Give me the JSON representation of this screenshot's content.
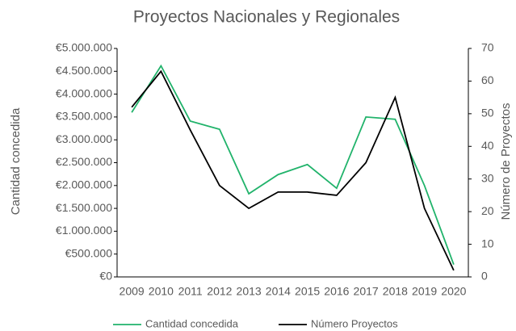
{
  "chart_data": {
    "type": "line",
    "title": "Proyectos Nacionales y Regionales",
    "y_label": "Cantidad concedida",
    "y2_label": "Número de Proyectos",
    "categories": [
      "2009",
      "2010",
      "2011",
      "2012",
      "2013",
      "2014",
      "2015",
      "2016",
      "2017",
      "2018",
      "2019",
      "2020"
    ],
    "series": [
      {
        "name": "Cantidad concedida",
        "color": "#21b36b",
        "axis": "y",
        "values": [
          3600000,
          4620000,
          3410000,
          3230000,
          1820000,
          2240000,
          2460000,
          1940000,
          3500000,
          3450000,
          2000000,
          270000
        ]
      },
      {
        "name": "Número Proyectos",
        "color": "#000000",
        "axis": "y2",
        "values": [
          52,
          63,
          45,
          28,
          21,
          26,
          26,
          25,
          35,
          55,
          21,
          2
        ]
      }
    ],
    "ylim": [
      0,
      5000000
    ],
    "yticks": [
      {
        "value": 0,
        "label": "€0"
      },
      {
        "value": 500000,
        "label": "€500.000"
      },
      {
        "value": 1000000,
        "label": "€1.000.000"
      },
      {
        "value": 1500000,
        "label": "€1.500.000"
      },
      {
        "value": 2000000,
        "label": "€2.000.000"
      },
      {
        "value": 2500000,
        "label": "€2.500.000"
      },
      {
        "value": 3000000,
        "label": "€3.000.000"
      },
      {
        "value": 3500000,
        "label": "€3.500.000"
      },
      {
        "value": 4000000,
        "label": "€4.000.000"
      },
      {
        "value": 4500000,
        "label": "€4.500.000"
      },
      {
        "value": 5000000,
        "label": "€5.000.000"
      }
    ],
    "y2lim": [
      0,
      70
    ],
    "y2ticks": [
      0,
      10,
      20,
      30,
      40,
      50,
      60,
      70
    ],
    "legend": "bottom"
  }
}
